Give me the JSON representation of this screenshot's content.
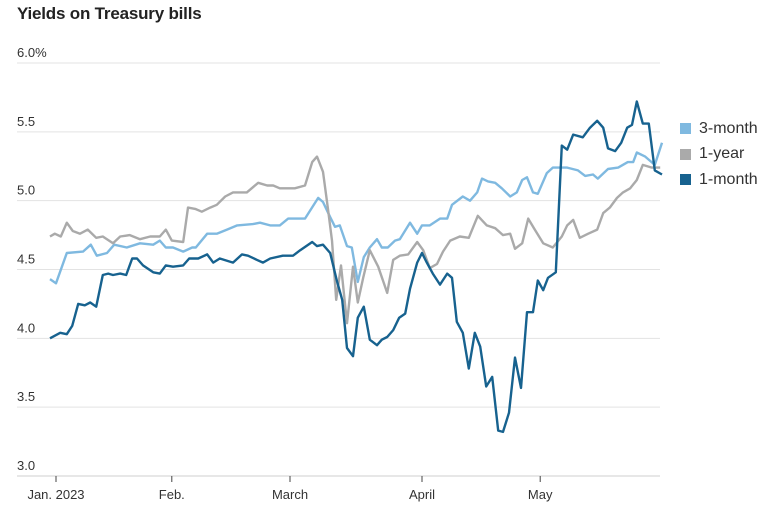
{
  "chart_data": {
    "type": "line",
    "title": "Yields on Treasury bills",
    "xlabel": "",
    "ylabel": "",
    "x_unit": "trading day index (Jan. 3, 2023 = 0)",
    "ylim": [
      3.0,
      6.0
    ],
    "xlim": [
      0,
      102
    ],
    "yticks": [
      {
        "value": 6.0,
        "label": "6.0%"
      },
      {
        "value": 5.5,
        "label": "5.5"
      },
      {
        "value": 5.0,
        "label": "5.0"
      },
      {
        "value": 4.5,
        "label": "4.5"
      },
      {
        "value": 4.0,
        "label": "4.0"
      },
      {
        "value": 3.5,
        "label": "3.5"
      },
      {
        "value": 3.0,
        "label": "3.0"
      }
    ],
    "xticks": [
      {
        "value": 1,
        "label": "Jan. 2023"
      },
      {
        "value": 20.3,
        "label": "Feb."
      },
      {
        "value": 40,
        "label": "March"
      },
      {
        "value": 62,
        "label": "April"
      },
      {
        "value": 81.7,
        "label": "May"
      }
    ],
    "grid": true,
    "legend_position": "right",
    "series": [
      {
        "name": "3-month",
        "color": "#7fb9e0",
        "points": [
          [
            0,
            4.43
          ],
          [
            1,
            4.4
          ],
          [
            2.8,
            4.62
          ],
          [
            5.5,
            4.63
          ],
          [
            6.8,
            4.68
          ],
          [
            7.8,
            4.6
          ],
          [
            9.5,
            4.62
          ],
          [
            10.7,
            4.68
          ],
          [
            12.8,
            4.66
          ],
          [
            15,
            4.69
          ],
          [
            17.2,
            4.68
          ],
          [
            18.3,
            4.71
          ],
          [
            19.3,
            4.66
          ],
          [
            20.5,
            4.66
          ],
          [
            22.2,
            4.63
          ],
          [
            23.7,
            4.66
          ],
          [
            24.3,
            4.66
          ],
          [
            26.2,
            4.76
          ],
          [
            27.8,
            4.76
          ],
          [
            29.5,
            4.79
          ],
          [
            31.2,
            4.82
          ],
          [
            33.8,
            4.83
          ],
          [
            35,
            4.84
          ],
          [
            36.7,
            4.82
          ],
          [
            38.3,
            4.82
          ],
          [
            39.7,
            4.87
          ],
          [
            42.5,
            4.87
          ],
          [
            44.7,
            5.02
          ],
          [
            45.5,
            4.99
          ],
          [
            46.7,
            4.88
          ],
          [
            47.5,
            4.81
          ],
          [
            48.3,
            4.82
          ],
          [
            49.5,
            4.67
          ],
          [
            50.3,
            4.66
          ],
          [
            51.3,
            4.41
          ],
          [
            52.3,
            4.59
          ],
          [
            53.3,
            4.66
          ],
          [
            54.5,
            4.72
          ],
          [
            55.3,
            4.66
          ],
          [
            56.3,
            4.66
          ],
          [
            57.5,
            4.71
          ],
          [
            58.3,
            4.72
          ],
          [
            60,
            4.84
          ],
          [
            61.2,
            4.76
          ],
          [
            62,
            4.82
          ],
          [
            63.3,
            4.82
          ],
          [
            65,
            4.87
          ],
          [
            66.2,
            4.87
          ],
          [
            67,
            4.97
          ],
          [
            68.8,
            5.03
          ],
          [
            70,
            5.0
          ],
          [
            71.2,
            5.06
          ],
          [
            72,
            5.16
          ],
          [
            73,
            5.14
          ],
          [
            74.2,
            5.13
          ],
          [
            75.3,
            5.09
          ],
          [
            76.7,
            5.03
          ],
          [
            77.8,
            5.06
          ],
          [
            78.7,
            5.15
          ],
          [
            79.5,
            5.17
          ],
          [
            80.5,
            5.06
          ],
          [
            81.3,
            5.05
          ],
          [
            82.8,
            5.2
          ],
          [
            83.8,
            5.24
          ],
          [
            86.2,
            5.24
          ],
          [
            88,
            5.22
          ],
          [
            89.2,
            5.18
          ],
          [
            90.5,
            5.19
          ],
          [
            91.3,
            5.16
          ],
          [
            93,
            5.23
          ],
          [
            94.7,
            5.24
          ],
          [
            96.3,
            5.28
          ],
          [
            97.2,
            5.28
          ],
          [
            97.8,
            5.35
          ],
          [
            99.2,
            5.32
          ],
          [
            100.8,
            5.26
          ],
          [
            102,
            5.42
          ]
        ]
      },
      {
        "name": "1-year",
        "color": "#aaaaaa",
        "points": [
          [
            0,
            4.74
          ],
          [
            0.8,
            4.76
          ],
          [
            1.8,
            4.74
          ],
          [
            2.8,
            4.84
          ],
          [
            3.8,
            4.78
          ],
          [
            5,
            4.76
          ],
          [
            6.3,
            4.79
          ],
          [
            7.7,
            4.73
          ],
          [
            8.8,
            4.74
          ],
          [
            10.5,
            4.69
          ],
          [
            11.7,
            4.74
          ],
          [
            13.3,
            4.75
          ],
          [
            15,
            4.72
          ],
          [
            16.7,
            4.74
          ],
          [
            18.3,
            4.74
          ],
          [
            19.3,
            4.79
          ],
          [
            20.3,
            4.71
          ],
          [
            22.2,
            4.7
          ],
          [
            23,
            4.95
          ],
          [
            24.2,
            4.94
          ],
          [
            25.3,
            4.92
          ],
          [
            26.7,
            4.95
          ],
          [
            27.8,
            4.97
          ],
          [
            29.2,
            5.03
          ],
          [
            30.5,
            5.06
          ],
          [
            32.8,
            5.06
          ],
          [
            34.7,
            5.13
          ],
          [
            36.2,
            5.11
          ],
          [
            37.2,
            5.11
          ],
          [
            38.3,
            5.09
          ],
          [
            40.8,
            5.09
          ],
          [
            42.5,
            5.11
          ],
          [
            43.7,
            5.28
          ],
          [
            44.5,
            5.32
          ],
          [
            45.5,
            5.21
          ],
          [
            46.3,
            4.95
          ],
          [
            47,
            4.71
          ],
          [
            47.7,
            4.28
          ],
          [
            48.5,
            4.53
          ],
          [
            49.5,
            4.11
          ],
          [
            50.5,
            4.52
          ],
          [
            51.3,
            4.26
          ],
          [
            52.2,
            4.44
          ],
          [
            53.3,
            4.64
          ],
          [
            54.7,
            4.52
          ],
          [
            56.2,
            4.33
          ],
          [
            57.2,
            4.57
          ],
          [
            58.3,
            4.6
          ],
          [
            59.7,
            4.61
          ],
          [
            61.2,
            4.7
          ],
          [
            62.2,
            4.64
          ],
          [
            63.3,
            4.51
          ],
          [
            64.5,
            4.54
          ],
          [
            65.5,
            4.63
          ],
          [
            66.7,
            4.71
          ],
          [
            68.3,
            4.74
          ],
          [
            69.8,
            4.73
          ],
          [
            71.3,
            4.89
          ],
          [
            72.8,
            4.82
          ],
          [
            74.2,
            4.8
          ],
          [
            75.5,
            4.75
          ],
          [
            76.7,
            4.76
          ],
          [
            77.5,
            4.65
          ],
          [
            78.7,
            4.69
          ],
          [
            79.7,
            4.87
          ],
          [
            80.8,
            4.79
          ],
          [
            82.2,
            4.69
          ],
          [
            83.8,
            4.66
          ],
          [
            85.3,
            4.74
          ],
          [
            86.2,
            4.82
          ],
          [
            87.2,
            4.86
          ],
          [
            88.3,
            4.73
          ],
          [
            89.7,
            4.76
          ],
          [
            91.2,
            4.79
          ],
          [
            92.2,
            4.91
          ],
          [
            93.3,
            4.95
          ],
          [
            94.5,
            5.02
          ],
          [
            95.5,
            5.06
          ],
          [
            96.7,
            5.09
          ],
          [
            97.8,
            5.15
          ],
          [
            98.8,
            5.26
          ],
          [
            100.3,
            5.24
          ],
          [
            101.7,
            5.24
          ]
        ]
      },
      {
        "name": "1-month",
        "color": "#17628f",
        "points": [
          [
            0,
            4.0
          ],
          [
            1.7,
            4.04
          ],
          [
            2.8,
            4.03
          ],
          [
            3.7,
            4.09
          ],
          [
            4.7,
            4.25
          ],
          [
            5.8,
            4.24
          ],
          [
            6.7,
            4.26
          ],
          [
            7.7,
            4.23
          ],
          [
            8.8,
            4.46
          ],
          [
            9.7,
            4.47
          ],
          [
            10.5,
            4.46
          ],
          [
            11.7,
            4.47
          ],
          [
            12.7,
            4.46
          ],
          [
            13.7,
            4.58
          ],
          [
            14.5,
            4.58
          ],
          [
            15.5,
            4.53
          ],
          [
            17.2,
            4.48
          ],
          [
            18.3,
            4.47
          ],
          [
            19.3,
            4.53
          ],
          [
            20.5,
            4.52
          ],
          [
            22.2,
            4.53
          ],
          [
            23.2,
            4.58
          ],
          [
            24.7,
            4.58
          ],
          [
            26.2,
            4.61
          ],
          [
            27.2,
            4.55
          ],
          [
            28.3,
            4.58
          ],
          [
            30.5,
            4.55
          ],
          [
            32,
            4.61
          ],
          [
            33,
            4.6
          ],
          [
            34.5,
            4.57
          ],
          [
            35.5,
            4.55
          ],
          [
            36.7,
            4.58
          ],
          [
            38.8,
            4.6
          ],
          [
            40.5,
            4.6
          ],
          [
            41.7,
            4.64
          ],
          [
            43.7,
            4.7
          ],
          [
            44.5,
            4.67
          ],
          [
            45.5,
            4.68
          ],
          [
            46.7,
            4.62
          ],
          [
            47.8,
            4.42
          ],
          [
            48.7,
            4.28
          ],
          [
            49.5,
            3.93
          ],
          [
            50.5,
            3.87
          ],
          [
            51.3,
            4.15
          ],
          [
            52.3,
            4.23
          ],
          [
            53.3,
            3.99
          ],
          [
            54.5,
            3.95
          ],
          [
            55.3,
            3.99
          ],
          [
            56.2,
            4.01
          ],
          [
            57.2,
            4.06
          ],
          [
            58.2,
            4.15
          ],
          [
            59.2,
            4.18
          ],
          [
            60,
            4.36
          ],
          [
            61.2,
            4.55
          ],
          [
            62,
            4.62
          ],
          [
            62.8,
            4.55
          ],
          [
            63.8,
            4.47
          ],
          [
            65,
            4.39
          ],
          [
            66.2,
            4.47
          ],
          [
            67,
            4.44
          ],
          [
            67.8,
            4.12
          ],
          [
            68.8,
            4.04
          ],
          [
            69.8,
            3.78
          ],
          [
            70.8,
            4.04
          ],
          [
            71.7,
            3.94
          ],
          [
            72.7,
            3.65
          ],
          [
            73.7,
            3.72
          ],
          [
            74.7,
            3.33
          ],
          [
            75.5,
            3.32
          ],
          [
            76.5,
            3.46
          ],
          [
            77.5,
            3.86
          ],
          [
            78.5,
            3.64
          ],
          [
            79.5,
            4.19
          ],
          [
            80.5,
            4.19
          ],
          [
            81.3,
            4.42
          ],
          [
            82.2,
            4.35
          ],
          [
            83,
            4.44
          ],
          [
            84.3,
            4.48
          ],
          [
            85.3,
            5.4
          ],
          [
            86.2,
            5.37
          ],
          [
            87.2,
            5.48
          ],
          [
            88.8,
            5.46
          ],
          [
            90,
            5.53
          ],
          [
            91.2,
            5.58
          ],
          [
            92.2,
            5.53
          ],
          [
            93,
            5.38
          ],
          [
            94.2,
            5.36
          ],
          [
            95.2,
            5.42
          ],
          [
            96.2,
            5.53
          ],
          [
            97,
            5.55
          ],
          [
            97.8,
            5.72
          ],
          [
            98.8,
            5.56
          ],
          [
            99.8,
            5.56
          ],
          [
            100.8,
            5.22
          ],
          [
            102,
            5.19
          ]
        ]
      }
    ],
    "legend": [
      "3-month",
      "1-year",
      "1-month"
    ]
  }
}
